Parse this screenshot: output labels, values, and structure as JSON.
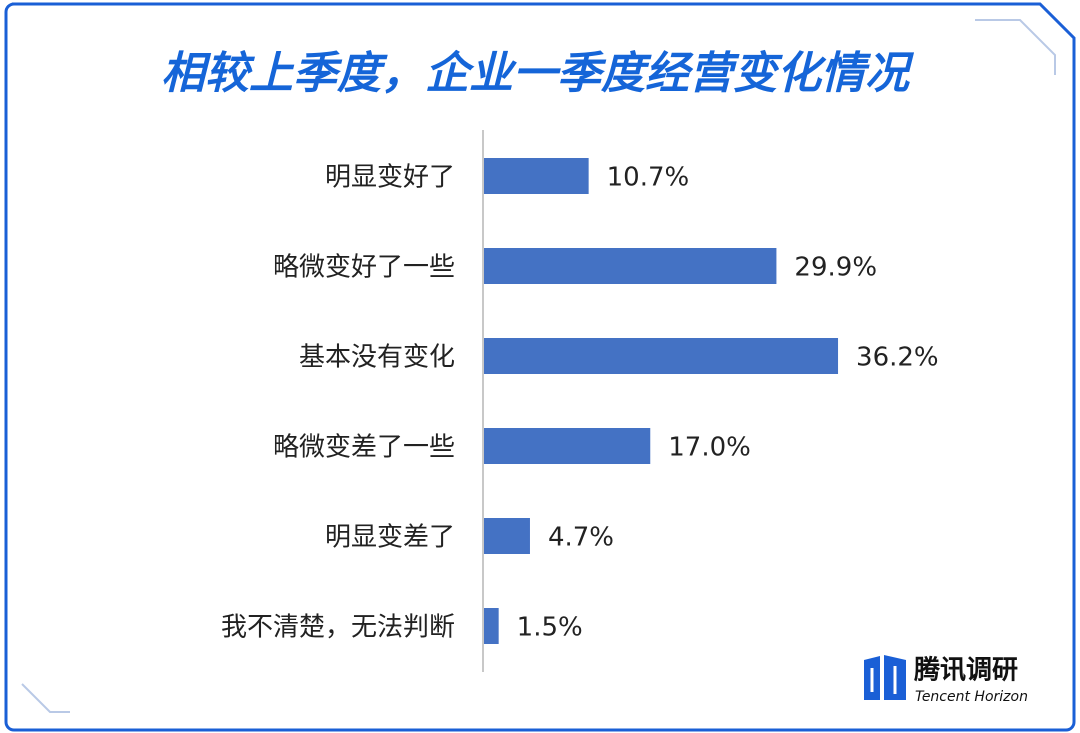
{
  "chart_data": {
    "type": "hbar",
    "title": "相较上季度，企业一季度经营变化情况",
    "categories": [
      "明显变好了",
      "略微变好了一些",
      "基本没有变化",
      "略微变差了一些",
      "明显变差了",
      "我不清楚，无法判断"
    ],
    "values": [
      10.7,
      29.9,
      36.2,
      17.0,
      4.7,
      1.5
    ],
    "value_labels": [
      "10.7%",
      "29.9%",
      "36.2%",
      "17.0%",
      "4.7%",
      "1.5%"
    ],
    "color": "#4472c4",
    "logo_text": "腾讯调研",
    "logo_subtext": "Tencent Horizon"
  }
}
